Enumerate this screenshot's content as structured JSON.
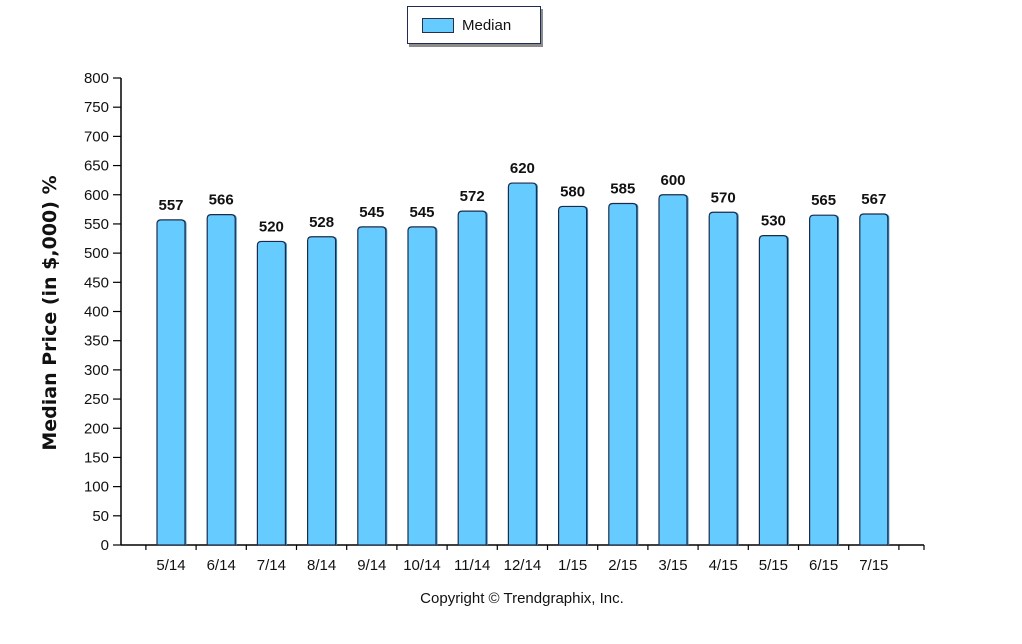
{
  "legend": {
    "label": "Median",
    "color": "#66ccff"
  },
  "copyright": "Copyright © Trendgraphix, Inc.",
  "chart_data": {
    "type": "bar",
    "title": "",
    "xlabel": "",
    "ylabel": "Median Price (in $,000) %",
    "ylim": [
      0,
      800
    ],
    "yticks": [
      0,
      50,
      100,
      150,
      200,
      250,
      300,
      350,
      400,
      450,
      500,
      550,
      600,
      650,
      700,
      750,
      800
    ],
    "grid": false,
    "legend_position": "top-center",
    "categories": [
      "5/14",
      "6/14",
      "7/14",
      "8/14",
      "9/14",
      "10/14",
      "11/14",
      "12/14",
      "1/15",
      "2/15",
      "3/15",
      "4/15",
      "5/15",
      "6/15",
      "7/15"
    ],
    "series": [
      {
        "name": "Median",
        "color": "#66ccff",
        "values": [
          557,
          566,
          520,
          528,
          545,
          545,
          572,
          620,
          580,
          585,
          600,
          570,
          530,
          565,
          567
        ]
      }
    ]
  }
}
